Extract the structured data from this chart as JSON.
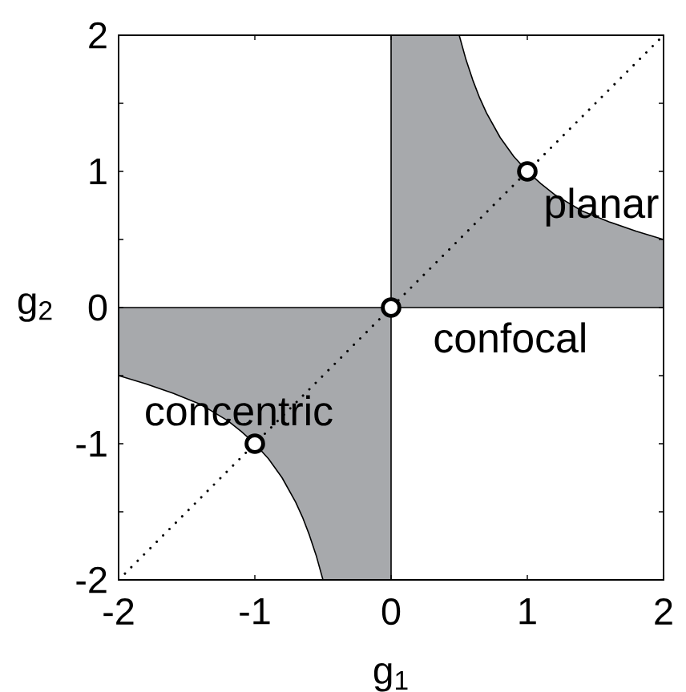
{
  "chart_data": {
    "type": "area",
    "xlabel": "g$_{1}$",
    "ylabel": "g$_{2}$",
    "xlim": [
      -2,
      2
    ],
    "ylim": [
      -2,
      2
    ],
    "xticks": [
      -2,
      -1,
      0,
      1,
      2
    ],
    "yticks": [
      -2,
      {
        "value": -1.5,
        "label": null
      },
      -1,
      {
        "value": -0.5,
        "label": null
      },
      0,
      {
        "value": 0.5,
        "label": null
      },
      1,
      {
        "value": 1.5,
        "label": null
      },
      2
    ],
    "series": [
      {
        "color": "#a7a9ac",
        "x": [
          0,
          0.5,
          0.55,
          0.6,
          0.65,
          0.7,
          0.8,
          0.9,
          1,
          1.1,
          1.2,
          1.3,
          1.4,
          1.6,
          1.8,
          2
        ],
        "values": [
          2,
          2,
          1.82,
          1.67,
          1.54,
          1.43,
          1.25,
          1.11,
          1,
          0.91,
          0.83,
          0.77,
          0.71,
          0.63,
          0.56,
          0.5
        ]
      },
      {
        "color": "#a7a9ac",
        "x": [
          -2,
          -1.8,
          -1.6,
          -1.4,
          -1.3,
          -1.2,
          -1.1,
          -1,
          -0.9,
          -0.8,
          -0.7,
          -0.65,
          -0.6,
          -0.55,
          -0.5,
          0
        ],
        "values": [
          -0.5,
          -0.56,
          -0.63,
          -0.71,
          -0.77,
          -0.83,
          -0.91,
          -1,
          -1.11,
          -1.25,
          -1.43,
          -1.54,
          -1.67,
          -1.82,
          -2,
          -2
        ]
      },
      {
        "type": "line",
        "color": "#000000",
        "line_style": "dotted",
        "x": [
          -2,
          2
        ],
        "values": [
          -2,
          2
        ]
      },
      {
        "type": "scatter",
        "color": "#000000",
        "marker": "circle",
        "x": [
          -1,
          0,
          1
        ],
        "values": [
          -1,
          0,
          1
        ]
      }
    ],
    "annotations": [
      {
        "text": "concentric",
        "x": -1,
        "y": -1
      },
      {
        "text": "confocal",
        "x": 0,
        "y": 0
      },
      {
        "text": "planar",
        "x": 1,
        "y": 1
      }
    ]
  }
}
